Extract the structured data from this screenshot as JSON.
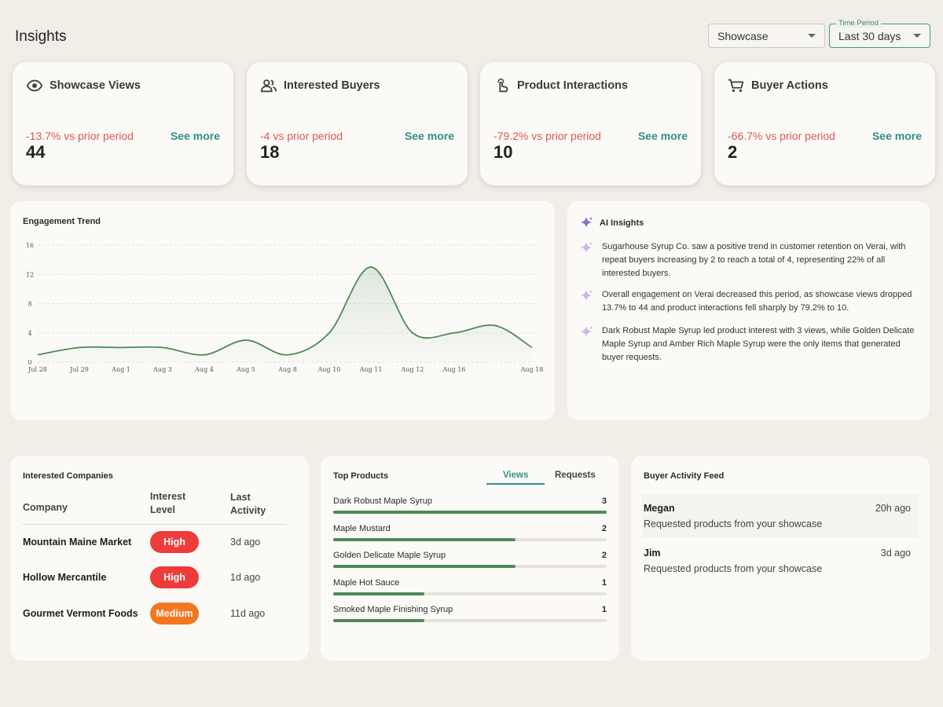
{
  "header": {
    "title": "Insights",
    "showcase_select": {
      "value": "Showcase"
    },
    "time_period_select": {
      "legend": "Time Period",
      "value": "Last 30 days"
    }
  },
  "stat_cards": [
    {
      "title": "Showcase Views",
      "icon": "eye-icon",
      "value": "44",
      "change": "-13.7% vs prior period",
      "link": "See more"
    },
    {
      "title": "Interested Buyers",
      "icon": "users-icon",
      "value": "18",
      "change": "-4 vs prior period",
      "link": "See more"
    },
    {
      "title": "Product Interactions",
      "icon": "pointer-hand-icon",
      "value": "10",
      "change": "-79.2% vs prior period",
      "link": "See more"
    },
    {
      "title": "Buyer Actions",
      "icon": "cart-icon",
      "value": "2",
      "change": "-66.7% vs prior period",
      "link": "See more"
    }
  ],
  "colors": {
    "negative": "#e25555",
    "accent": "#2f8f86",
    "line": "#4f8a57",
    "high_badge": "#ee3b3b",
    "medium_badge": "#f47720",
    "sparkle": "#b79be6"
  },
  "chart_data": {
    "type": "line",
    "title": "Engagement Trend",
    "x": [
      "Jul 28",
      "Jul 29",
      "Aug 1",
      "Aug 3",
      "Aug 4",
      "Aug 5",
      "Aug 8",
      "Aug 10",
      "Aug 11",
      "Aug 12",
      "Aug 16",
      "Aug 18"
    ],
    "values": [
      1,
      2,
      2,
      2,
      1,
      3,
      1,
      4,
      13,
      4,
      4,
      2
    ],
    "extra_point_between_aug16_aug18": 5,
    "ylim": [
      0,
      16
    ],
    "yticks": [
      0,
      4,
      8,
      12,
      16
    ],
    "grid": true,
    "area_fill": true
  },
  "ai_insights": {
    "title": "AI Insights",
    "items": [
      "Sugarhouse Syrup Co. saw a positive trend in customer retention on Verai, with repeat buyers increasing by 2 to reach a total of 4, representing 22% of all interested buyers.",
      "Overall engagement on Verai decreased this period, as showcase views dropped 13.7% to 44 and product interactions fell sharply by 79.2% to 10.",
      "Dark Robust Maple Syrup led product interest with 3 views, while Golden Delicate Maple Syrup and Amber Rich Maple Syrup were the only items that generated buyer requests."
    ]
  },
  "companies": {
    "title": "Interested Companies",
    "columns": {
      "company": "Company",
      "interest_1": "Interest",
      "interest_2": "Level",
      "last_1": "Last",
      "last_2": "Activity"
    },
    "rows": [
      {
        "name": "Mountain Maine Market",
        "level": "High",
        "last": "3d ago"
      },
      {
        "name": "Hollow Mercantile",
        "level": "High",
        "last": "1d ago"
      },
      {
        "name": "Gourmet Vermont Foods",
        "level": "Medium",
        "last": "11d ago"
      }
    ]
  },
  "top_products": {
    "title": "Top Products",
    "tabs": [
      "Views",
      "Requests"
    ],
    "active_tab": "Views",
    "max": 3,
    "rows": [
      {
        "name": "Dark Robust Maple Syrup",
        "value": 3
      },
      {
        "name": "Maple Mustard",
        "value": 2
      },
      {
        "name": "Golden Delicate Maple Syrup",
        "value": 2
      },
      {
        "name": "Maple Hot Sauce",
        "value": 1
      },
      {
        "name": "Smoked Maple Finishing Syrup",
        "value": 1
      }
    ]
  },
  "activity_feed": {
    "title": "Buyer Activity Feed",
    "items": [
      {
        "who": "Megan",
        "when": "20h ago",
        "what": "Requested products from your showcase"
      },
      {
        "who": "Jim",
        "when": "3d ago",
        "what": "Requested products from your showcase"
      }
    ]
  }
}
